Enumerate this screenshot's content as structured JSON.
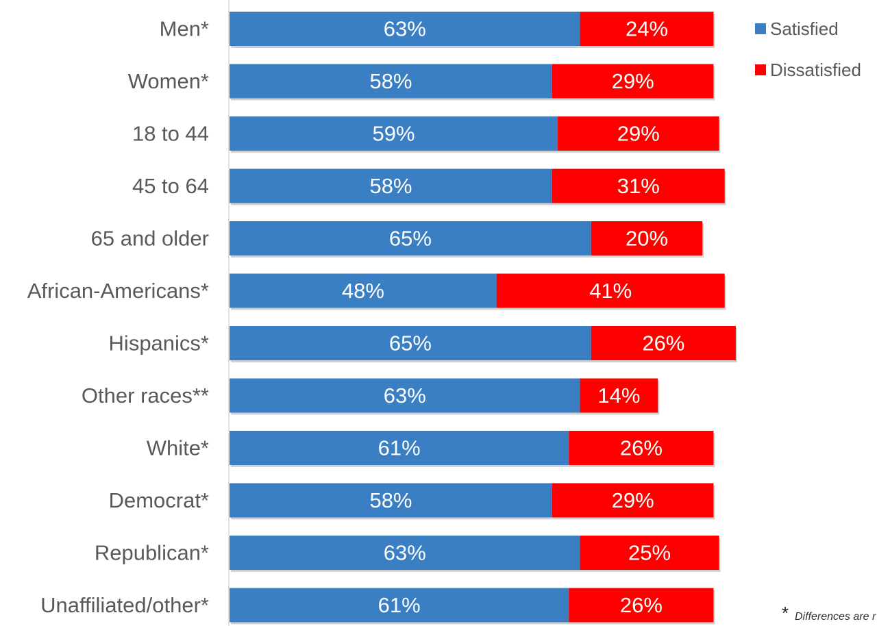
{
  "chart_data": {
    "type": "bar",
    "orientation": "horizontal",
    "stacked": true,
    "categories": [
      "Men*",
      "Women*",
      "18 to 44",
      "45 to 64",
      "65 and older",
      "African-Americans*",
      "Hispanics*",
      "Other races**",
      "White*",
      "Democrat*",
      "Republican*",
      "Unaffiliated/other*"
    ],
    "series": [
      {
        "name": "Satisfied",
        "color": "#3A7FC4",
        "values": [
          63,
          58,
          59,
          58,
          65,
          48,
          65,
          63,
          61,
          58,
          63,
          61
        ],
        "labels": [
          "63%",
          "58%",
          "59%",
          "58%",
          "65%",
          "48%",
          "65%",
          "63%",
          "61%",
          "58%",
          "63%",
          "61%"
        ]
      },
      {
        "name": "Dissatisfied",
        "color": "#FF0000",
        "values": [
          24,
          29,
          29,
          31,
          20,
          41,
          26,
          14,
          26,
          29,
          25,
          26
        ],
        "labels": [
          "24%",
          "29%",
          "29%",
          "31%",
          "20%",
          "41%",
          "26%",
          "14%",
          "26%",
          "29%",
          "25%",
          "26%"
        ]
      }
    ],
    "legend_position": "top-right",
    "grid": false,
    "xlim": [
      0,
      100
    ],
    "footnote": {
      "mark": "*",
      "text": "Differences are r"
    }
  }
}
